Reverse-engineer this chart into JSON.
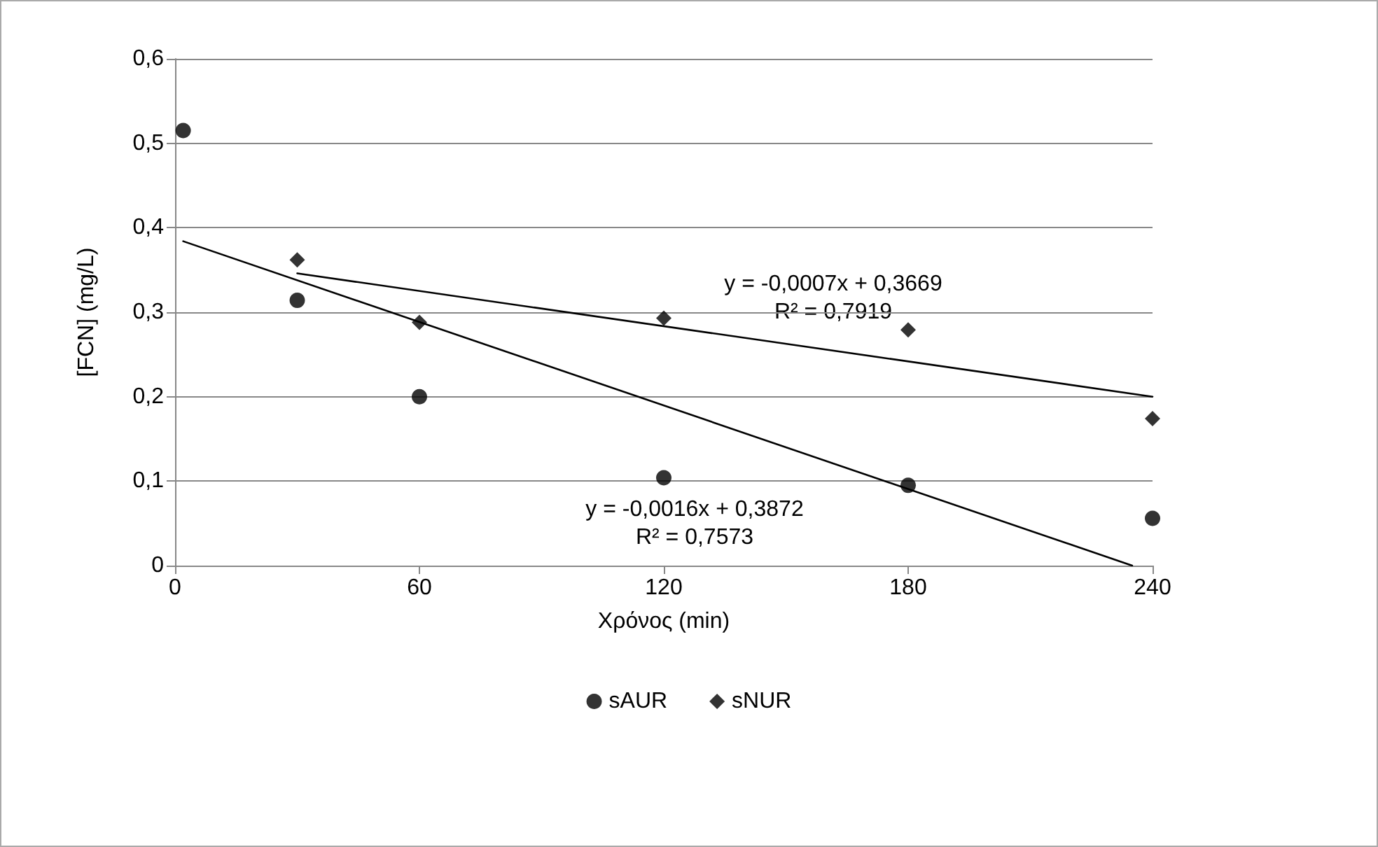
{
  "chart_data": {
    "type": "scatter",
    "xlabel": "Χρόνος (min)",
    "ylabel": "[FCN] (mg/L)",
    "xlim": [
      0,
      240
    ],
    "xticks": [
      0,
      60,
      120,
      180,
      240
    ],
    "ylim": [
      0,
      0.6
    ],
    "yticks": [
      0,
      {
        "value": 0.1,
        "label": "0,1"
      },
      {
        "value": 0.2,
        "label": "0,2"
      },
      {
        "value": 0.3,
        "label": "0,3"
      },
      {
        "value": 0.4,
        "label": "0,4"
      },
      {
        "value": 0.5,
        "label": "0,5"
      },
      {
        "value": 0.6,
        "label": "0,6"
      }
    ],
    "grid": "y",
    "legend": "bottom",
    "series": [
      {
        "name": "sAUR",
        "color": "#000000",
        "marker": "circle",
        "x": [
          2,
          30,
          60,
          120,
          180,
          240
        ],
        "values": [
          0.515,
          0.314,
          0.2,
          0.104,
          0.095,
          0.056
        ]
      },
      {
        "name": "sNUR",
        "color": "#000000",
        "marker": "diamond",
        "x": [
          30,
          60,
          120,
          180,
          240
        ],
        "values": [
          0.362,
          0.288,
          0.293,
          0.279,
          0.174
        ]
      },
      {
        "type": "line",
        "color": "#000000",
        "marker": "none",
        "x": [
          2,
          235
        ],
        "values": [
          0.384,
          0
        ]
      },
      {
        "type": "line",
        "color": "#000000",
        "marker": "none",
        "x": [
          30,
          240
        ],
        "values": [
          0.346,
          0.2
        ]
      }
    ],
    "annotations": [
      "y = -0,0007x + 0,3669\nR² = 0,7919",
      "y = -0,0016x + 0,3872\nR² = 0,7573"
    ]
  }
}
